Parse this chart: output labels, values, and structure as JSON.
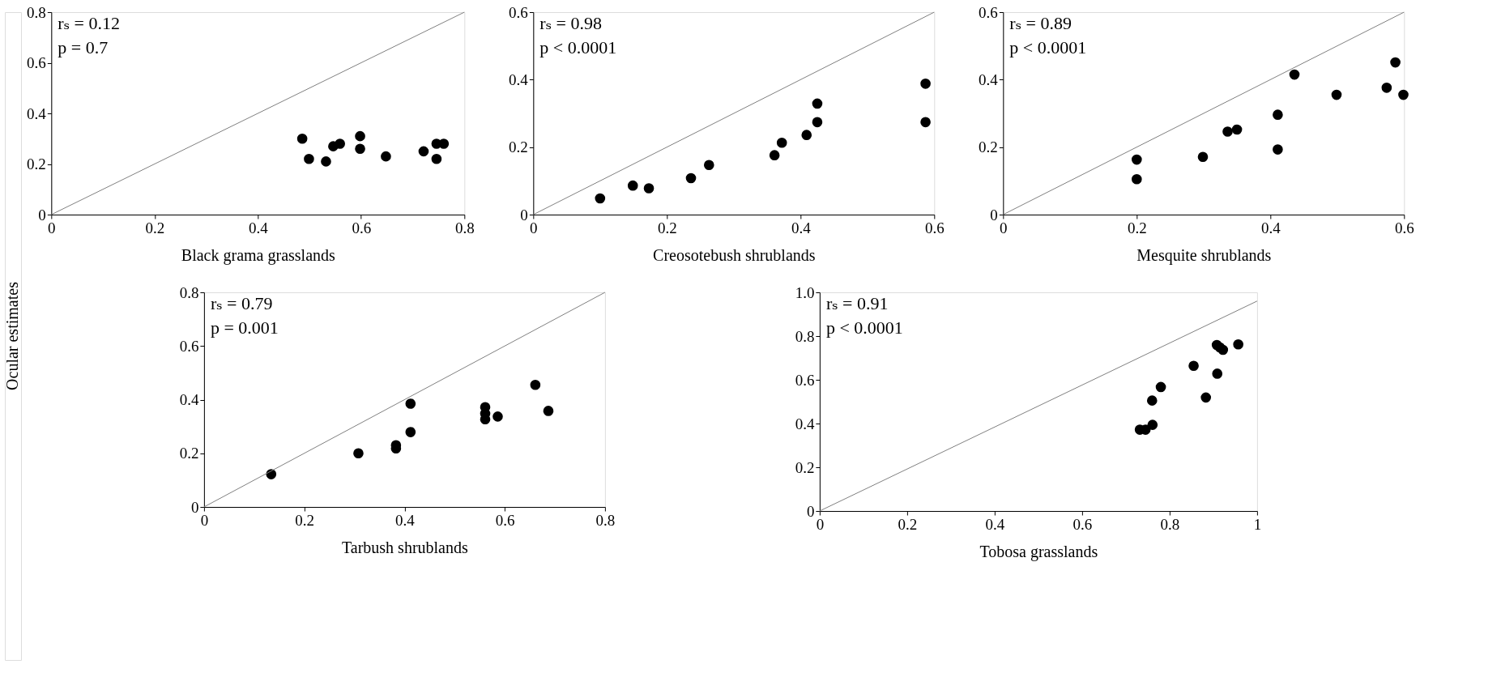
{
  "chart_data": [
    {
      "type": "scatter",
      "xlabel": "Black grama grasslands",
      "ylabel": "Ocular estimates",
      "annotations": [
        "rₛ = 0.12",
        "p = 0.7"
      ],
      "xlim": [
        0,
        0.8
      ],
      "ylim": [
        0,
        0.8
      ],
      "xticks": [
        0,
        0.2,
        0.4,
        0.6,
        0.8
      ],
      "yticks": [
        0,
        0.2,
        0.4,
        0.6,
        0.8
      ],
      "grid": false,
      "series": [
        {
          "type": "scatter",
          "color": "#000000",
          "marker": "circle",
          "x": [
            0.486,
            0.499,
            0.532,
            0.546,
            0.559,
            0.598,
            0.598,
            0.648,
            0.721,
            0.746,
            0.746,
            0.76
          ],
          "values": [
            0.3,
            0.22,
            0.21,
            0.27,
            0.28,
            0.31,
            0.26,
            0.23,
            0.25,
            0.28,
            0.22,
            0.28
          ]
        },
        {
          "type": "line",
          "color": "#808080",
          "line_style": "solid",
          "x": [
            0,
            0.8
          ],
          "values": [
            0,
            0.8
          ]
        }
      ]
    },
    {
      "type": "scatter",
      "xlabel": "Creosotebush shrublands",
      "annotations": [
        "rₛ = 0.98",
        "p < 0.0001"
      ],
      "xlim": [
        0,
        0.6
      ],
      "ylim": [
        0,
        0.6
      ],
      "xticks": [
        0,
        0.2,
        0.4,
        0.6
      ],
      "yticks": [
        0,
        0.2,
        0.4,
        0.6
      ],
      "grid": false,
      "series": [
        {
          "type": "scatter",
          "color": "#000000",
          "marker": "circle",
          "x": [
            0.1,
            0.149,
            0.173,
            0.236,
            0.263,
            0.361,
            0.372,
            0.409,
            0.425,
            0.425,
            0.587,
            0.587
          ],
          "values": [
            0.048,
            0.086,
            0.078,
            0.108,
            0.147,
            0.176,
            0.213,
            0.236,
            0.329,
            0.274,
            0.388,
            0.274
          ]
        },
        {
          "type": "line",
          "color": "#808080",
          "line_style": "solid",
          "x": [
            0,
            0.6
          ],
          "values": [
            0,
            0.6
          ]
        }
      ]
    },
    {
      "type": "scatter",
      "xlabel": "Mesquite shrublands",
      "annotations": [
        "rₛ = 0.89",
        "p < 0.0001"
      ],
      "xlim": [
        0,
        0.6
      ],
      "ylim": [
        0,
        0.6
      ],
      "xticks": [
        0,
        0.2,
        0.4,
        0.6
      ],
      "yticks": [
        0,
        0.2,
        0.4,
        0.6
      ],
      "grid": false,
      "series": [
        {
          "type": "scatter",
          "color": "#000000",
          "marker": "circle",
          "x": [
            0.2,
            0.2,
            0.299,
            0.336,
            0.35,
            0.411,
            0.411,
            0.436,
            0.499,
            0.574,
            0.587,
            0.599
          ],
          "values": [
            0.163,
            0.105,
            0.171,
            0.246,
            0.252,
            0.296,
            0.193,
            0.415,
            0.355,
            0.376,
            0.451,
            0.355
          ]
        },
        {
          "type": "line",
          "color": "#808080",
          "line_style": "solid",
          "x": [
            0,
            0.6
          ],
          "values": [
            0,
            0.6
          ]
        }
      ]
    },
    {
      "type": "scatter",
      "xlabel": "Tarbush shrublands",
      "annotations": [
        "rₛ = 0.79",
        "p = 0.001"
      ],
      "xlim": [
        0,
        0.8
      ],
      "ylim": [
        0,
        0.8
      ],
      "xticks": [
        0,
        0.2,
        0.4,
        0.6,
        0.8
      ],
      "yticks": [
        0,
        0.2,
        0.4,
        0.6,
        0.8
      ],
      "grid": false,
      "series": [
        {
          "type": "scatter",
          "color": "#000000",
          "marker": "circle",
          "x": [
            0.134,
            0.308,
            0.383,
            0.383,
            0.412,
            0.412,
            0.561,
            0.561,
            0.561,
            0.586,
            0.661,
            0.687
          ],
          "values": [
            0.122,
            0.2,
            0.23,
            0.218,
            0.279,
            0.385,
            0.372,
            0.348,
            0.327,
            0.337,
            0.455,
            0.358
          ]
        },
        {
          "type": "line",
          "color": "#808080",
          "line_style": "solid",
          "x": [
            0,
            0.8
          ],
          "values": [
            0,
            0.8
          ]
        }
      ]
    },
    {
      "type": "scatter",
      "xlabel": "Tobosa grasslands",
      "annotations": [
        "rₛ = 0.91",
        "p < 0.0001"
      ],
      "xlim": [
        0,
        1
      ],
      "ylim": [
        0,
        1
      ],
      "xticks": [
        0,
        0.2,
        0.4,
        0.6,
        0.8,
        1
      ],
      "yticks": [
        0,
        0.2,
        0.4,
        0.6,
        0.8,
        {
          "value": 1,
          "label": "1.0"
        }
      ],
      "grid": false,
      "series": [
        {
          "type": "scatter",
          "color": "#000000",
          "marker": "circle",
          "x": [
            0.732,
            0.745,
            0.761,
            0.76,
            0.78,
            0.855,
            0.883,
            0.909,
            0.908,
            0.922,
            0.957,
            0.915
          ],
          "values": [
            0.372,
            0.372,
            0.394,
            0.505,
            0.567,
            0.664,
            0.519,
            0.628,
            0.759,
            0.737,
            0.762,
            0.748
          ]
        },
        {
          "type": "line",
          "color": "#808080",
          "line_style": "solid",
          "x": [
            0,
            1
          ],
          "values": [
            0,
            0.96
          ]
        }
      ]
    }
  ]
}
